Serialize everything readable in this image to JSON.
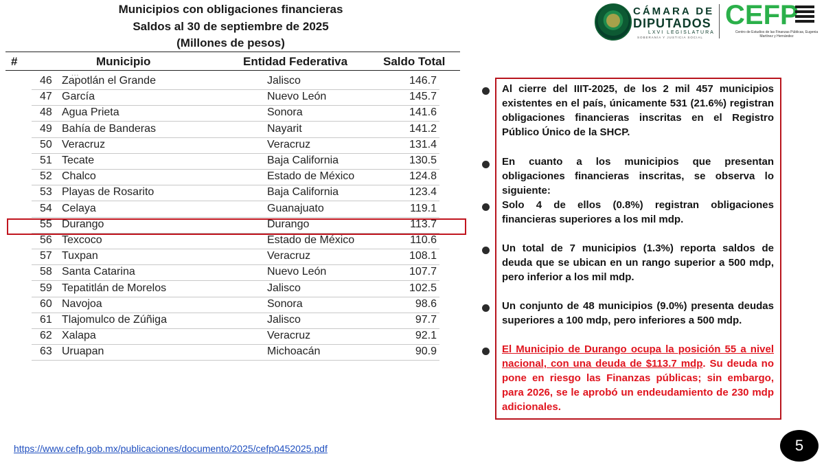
{
  "title": {
    "line1": "Municipios con obligaciones financieras",
    "line2": "Saldos al 30 de septiembre de 2025",
    "line3": "(Millones de pesos)"
  },
  "table": {
    "headers": [
      "#",
      "Municipio",
      "Entidad Federativa",
      "Saldo Total"
    ],
    "top_ellipsis": "...",
    "rows": [
      {
        "num": "46",
        "municipio": "Zapotlán el Grande",
        "entidad": "Jalisco",
        "saldo": "146.7"
      },
      {
        "num": "47",
        "municipio": "García",
        "entidad": "Nuevo León",
        "saldo": "145.7"
      },
      {
        "num": "48",
        "municipio": "Agua Prieta",
        "entidad": "Sonora",
        "saldo": "141.6"
      },
      {
        "num": "49",
        "municipio": "Bahía de Banderas",
        "entidad": "Nayarit",
        "saldo": "141.2"
      },
      {
        "num": "50",
        "municipio": "Veracruz",
        "entidad": "Veracruz",
        "saldo": "131.4"
      },
      {
        "num": "51",
        "municipio": "Tecate",
        "entidad": "Baja California",
        "saldo": "130.5"
      },
      {
        "num": "52",
        "municipio": "Chalco",
        "entidad": "Estado de México",
        "saldo": "124.8"
      },
      {
        "num": "53",
        "municipio": "Playas de Rosarito",
        "entidad": "Baja California",
        "saldo": "123.4"
      },
      {
        "num": "54",
        "municipio": "Celaya",
        "entidad": "Guanajuato",
        "saldo": "119.1"
      },
      {
        "num": "55",
        "municipio": "Durango",
        "entidad": "Durango",
        "saldo": "113.7"
      },
      {
        "num": "56",
        "municipio": "Texcoco",
        "entidad": "Estado de México",
        "saldo": "110.6"
      },
      {
        "num": "57",
        "municipio": "Tuxpan",
        "entidad": "Veracruz",
        "saldo": "108.1"
      },
      {
        "num": "58",
        "municipio": "Santa Catarina",
        "entidad": "Nuevo León",
        "saldo": "107.7"
      },
      {
        "num": "59",
        "municipio": "Tepatitlán de Morelos",
        "entidad": "Jalisco",
        "saldo": "102.5"
      },
      {
        "num": "60",
        "municipio": "Navojoa",
        "entidad": "Sonora",
        "saldo": "98.6"
      },
      {
        "num": "61",
        "municipio": "Tlajomulco de Zúñiga",
        "entidad": "Jalisco",
        "saldo": "97.7"
      },
      {
        "num": "62",
        "municipio": "Xalapa",
        "entidad": "Veracruz",
        "saldo": "92.1"
      },
      {
        "num": "63",
        "municipio": "Uruapan",
        "entidad": "Michoacán",
        "saldo": "90.9"
      }
    ],
    "highlighted_row_num": "55",
    "highlight_color": "#c0141e"
  },
  "logos": {
    "camara_line1": "CÁMARA DE",
    "camara_line2": "DIPUTADOS",
    "camara_line3": "LXVI LEGISLATURA",
    "camara_line4": "SOBERANÍA Y JUSTICIA SOCIAL",
    "cefp": "CEFP",
    "cefp_sub": "Centro de Estudios de las Finanzas Públicas, Eugenia Martínez y Hernández",
    "cefp_color": "#2bb04a"
  },
  "notes": {
    "p1": "Al cierre del IIIT-2025, de los 2 mil 457 municipios existentes en el país, únicamente 531 (21.6%) registran obligaciones financieras inscritas en el Registro Público Único de la SHCP.",
    "p2": "En cuanto a los municipios que presentan obligaciones financieras inscritas, se observa lo siguiente:",
    "p3": "Solo 4 de ellos (0.8%) registran obligaciones financieras superiores a los mil mdp.",
    "p4": "Un total de 7 municipios (1.3%) reporta saldos de deuda que se ubican en un rango superior a 500 mdp, pero inferior a los mil mdp.",
    "p5": "Un conjunto de 48 municipios (9.0%) presenta deudas superiores a 100 mdp, pero inferiores a 500 mdp.",
    "p6_underlined": "El Municipio de Durango ocupa la posición 55 a nivel nacional, con una deuda de $113.7 mdp",
    "p6_rest": ". Su deuda no pone en riesgo las Finanzas públicas; sin embargo, para 2026, se le aprobó un endeudamiento de 230 mdp adicionales.",
    "accent_color": "#e0141e",
    "border_color": "#b8141d"
  },
  "footer": {
    "link": "https://www.cefp.gob.mx/publicaciones/documento/2025/cefp0452025.pdf",
    "page_number": "5"
  }
}
